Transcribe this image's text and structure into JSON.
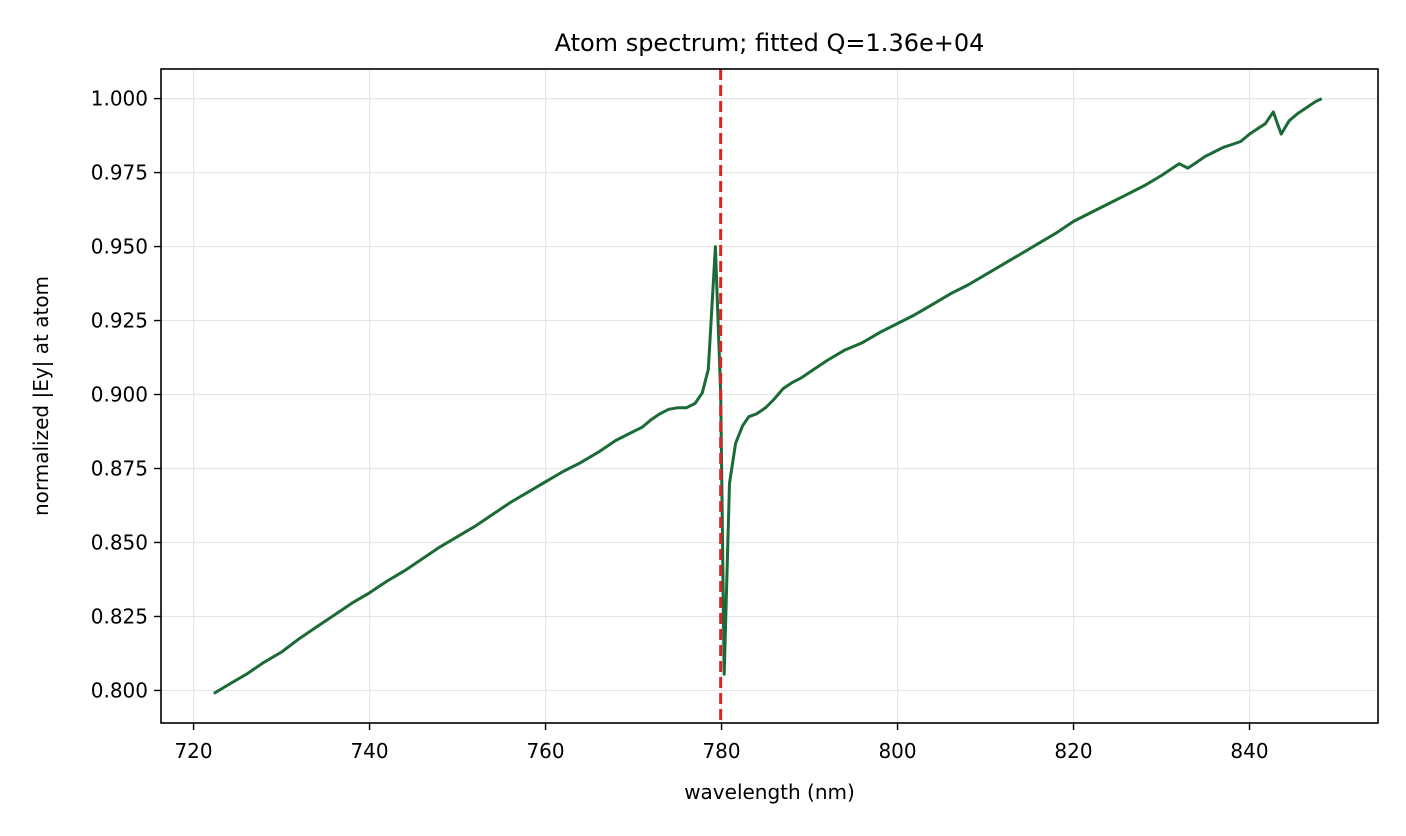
{
  "chart_data": {
    "type": "line",
    "title": "Atom spectrum; fitted Q=1.36e+04",
    "xlabel": "wavelength (nm)",
    "ylabel": "normalized |Ey| at atom",
    "xlim": [
      716.3,
      854.6
    ],
    "ylim": [
      0.789,
      1.01
    ],
    "xticks": [
      720,
      740,
      760,
      780,
      800,
      820,
      840
    ],
    "yticks": [
      0.8,
      0.825,
      0.85,
      0.875,
      0.9,
      0.925,
      0.95,
      0.975,
      1.0
    ],
    "xtick_labels": [
      "720",
      "740",
      "760",
      "780",
      "800",
      "820",
      "840"
    ],
    "ytick_labels": [
      "0.800",
      "0.825",
      "0.850",
      "0.875",
      "0.900",
      "0.925",
      "0.950",
      "0.975",
      "1.000"
    ],
    "grid": true,
    "colors": {
      "series": "#1b6a37",
      "marker": "#d62728",
      "grid": "#e6e6e6"
    },
    "vline": {
      "x": 779.9,
      "style": "dashed"
    },
    "series": [
      {
        "x": [
          722.3,
          724,
          726,
          728,
          730,
          732,
          734,
          736,
          738,
          740,
          742,
          744,
          746,
          748,
          750,
          752,
          754,
          756,
          758,
          760,
          762,
          764,
          766,
          768,
          770,
          771,
          772,
          773,
          774,
          775,
          776,
          777,
          777.8,
          778.5,
          779.3,
          779.9,
          780.3,
          780.9,
          781.6,
          782.4,
          783.1,
          784,
          785,
          786,
          787,
          788,
          789,
          790,
          792,
          794,
          796,
          798,
          800,
          802,
          804,
          806,
          808,
          810,
          812,
          814,
          816,
          818,
          820,
          822,
          824,
          826,
          828,
          830,
          832,
          833,
          834,
          835,
          836,
          837,
          838,
          839,
          840,
          841,
          841.8,
          842.7,
          843.6,
          844.5,
          845.5,
          846.5,
          847.5,
          848.2
        ],
        "y": [
          0.799,
          0.802,
          0.8055,
          0.8095,
          0.813,
          0.8175,
          0.8215,
          0.8255,
          0.8295,
          0.833,
          0.837,
          0.8405,
          0.8445,
          0.8485,
          0.852,
          0.8555,
          0.8595,
          0.8635,
          0.867,
          0.8705,
          0.874,
          0.877,
          0.8805,
          0.8845,
          0.8875,
          0.889,
          0.8915,
          0.8935,
          0.895,
          0.8955,
          0.8955,
          0.897,
          0.9005,
          0.9085,
          0.95,
          0.9,
          0.8055,
          0.87,
          0.8835,
          0.8895,
          0.8925,
          0.8935,
          0.8955,
          0.8985,
          0.902,
          0.904,
          0.9055,
          0.9075,
          0.9115,
          0.915,
          0.9175,
          0.921,
          0.924,
          0.927,
          0.9305,
          0.934,
          0.937,
          0.9405,
          0.944,
          0.9475,
          0.951,
          0.9545,
          0.9585,
          0.9615,
          0.9645,
          0.9675,
          0.9705,
          0.974,
          0.978,
          0.9765,
          0.9785,
          0.9805,
          0.982,
          0.9835,
          0.9845,
          0.9855,
          0.988,
          0.99,
          0.9915,
          0.9955,
          0.988,
          0.9925,
          0.995,
          0.997,
          0.999,
          1.0
        ]
      }
    ]
  }
}
